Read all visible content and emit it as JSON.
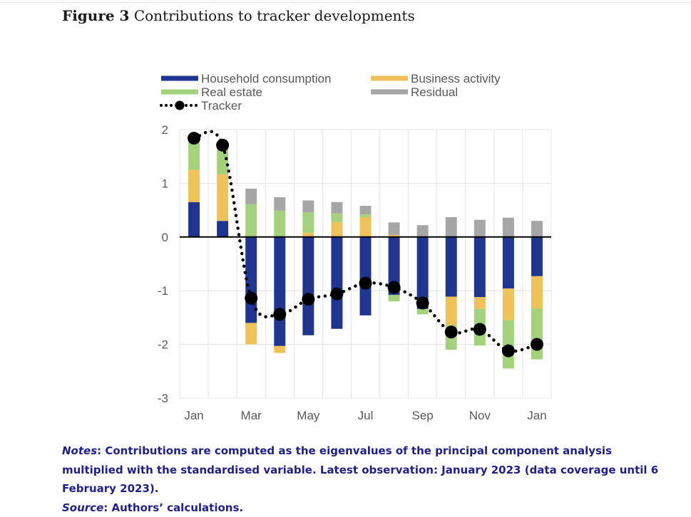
{
  "figure": {
    "label": "Figure 3",
    "title": "Contributions to tracker developments"
  },
  "notes": {
    "notes_label": "Notes",
    "notes_text": ": Contributions are computed as the eigenvalues of the principal component analysis multiplied with the standardised variable. Latest observation: January 2023 (data coverage until 6 February 2023).",
    "source_label": "Source",
    "source_text": ": Authors’ calculations."
  },
  "colors": {
    "household": "#1f3590",
    "business": "#efc15a",
    "real_estate": "#a4d27c",
    "residual": "#a6a6a6",
    "tracker": "#000000",
    "notes_text": "#1e1f8a"
  },
  "chart_data": {
    "type": "bar",
    "stacked": true,
    "title": "Contributions to tracker developments",
    "xlabel": "",
    "ylabel": "",
    "ylim": [
      -3,
      2
    ],
    "yticks": [
      2,
      1,
      0,
      -1,
      -2,
      -3
    ],
    "grid": true,
    "legend_position": "top",
    "categories": [
      "Jan 2022",
      "Feb 2022",
      "Mar 2022",
      "Apr 2022",
      "May 2022",
      "Jun 2022",
      "Jul 2022",
      "Aug 2022",
      "Sep 2022",
      "Oct 2022",
      "Nov 2022",
      "Dec 2022",
      "Jan 2023"
    ],
    "xtick_labels": [
      "Jan",
      "",
      "Mar",
      "",
      "May",
      "",
      "Jul",
      "",
      "Sep",
      "",
      "Nov",
      "",
      "Jan"
    ],
    "series": [
      {
        "name": "Household consumption",
        "key": "household",
        "kind": "bar",
        "values": [
          0.65,
          0.3,
          -1.6,
          -2.03,
          -1.83,
          -1.71,
          -1.46,
          -1.08,
          -1.34,
          -1.11,
          -1.12,
          -0.96,
          -0.73
        ]
      },
      {
        "name": "Business activity",
        "key": "business",
        "kind": "bar",
        "values": [
          0.6,
          0.87,
          -0.4,
          -0.13,
          0.08,
          0.28,
          0.37,
          0.04,
          0.0,
          -0.53,
          -0.22,
          -0.59,
          -0.6
        ]
      },
      {
        "name": "Real estate",
        "key": "real_estate",
        "kind": "bar",
        "values": [
          0.6,
          0.55,
          0.61,
          0.49,
          0.38,
          0.16,
          0.05,
          -0.12,
          -0.1,
          -0.46,
          -0.68,
          -0.9,
          -0.95
        ]
      },
      {
        "name": "Residual",
        "key": "residual",
        "kind": "bar",
        "values": [
          0.0,
          0.0,
          0.29,
          0.25,
          0.22,
          0.21,
          0.16,
          0.23,
          0.22,
          0.37,
          0.32,
          0.36,
          0.3
        ]
      },
      {
        "name": "Tracker",
        "key": "tracker",
        "kind": "line-dotted-markers",
        "values": [
          1.84,
          1.71,
          -1.14,
          -1.44,
          -1.16,
          -1.06,
          -0.86,
          -0.94,
          -1.23,
          -1.77,
          -1.72,
          -2.12,
          -2.0
        ]
      }
    ],
    "legend": [
      {
        "label": "Household consumption",
        "key": "household"
      },
      {
        "label": "Business activity",
        "key": "business"
      },
      {
        "label": "Real estate",
        "key": "real_estate"
      },
      {
        "label": "Residual",
        "key": "residual"
      },
      {
        "label": "Tracker",
        "key": "tracker"
      }
    ]
  }
}
